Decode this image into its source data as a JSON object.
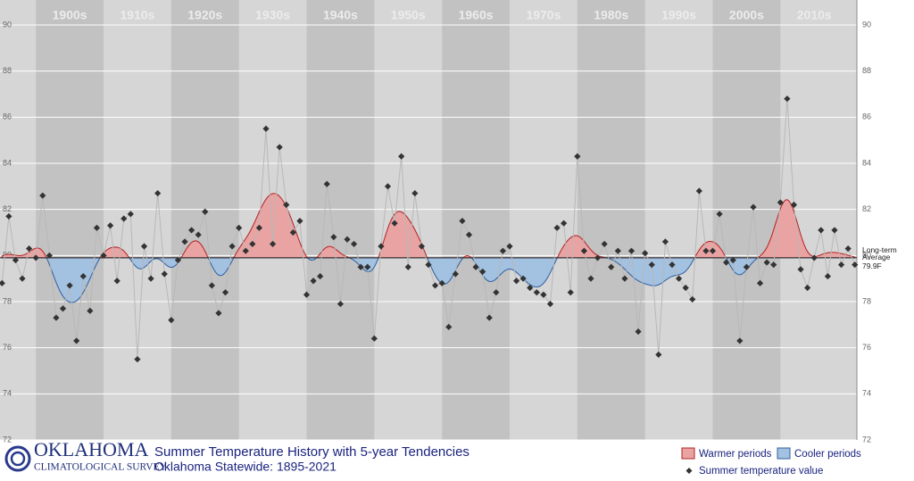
{
  "chart_data": {
    "type": "scatter",
    "title": "Summer Temperature History with 5-year Tendencies",
    "subtitle": "Oklahoma Statewide: 1895-2021",
    "logo": {
      "name": "OKLAHOMA",
      "subname": "CLIMATOLOGICAL SURVEY"
    },
    "decades": [
      "1900s",
      "1910s",
      "1920s",
      "1930s",
      "1940s",
      "1950s",
      "1960s",
      "1970s",
      "1980s",
      "1990s",
      "2000s",
      "2010s"
    ],
    "average": 79.9,
    "average_label_lines": [
      "Long-term",
      "Average"
    ],
    "average_value_label": "79.9F",
    "legend": {
      "warm": "Warmer periods",
      "cool": "Cooler periods",
      "points": "Summer temperature value"
    },
    "colors": {
      "warm_fill": "#e9a3a3",
      "warm_line": "#b22222",
      "cool_fill": "#a3c1e0",
      "cool_line": "#2f5f9e",
      "point": "#333333",
      "connector": "#b8b8b8"
    },
    "x": [
      1895,
      1896,
      1897,
      1898,
      1899,
      1900,
      1901,
      1902,
      1903,
      1904,
      1905,
      1906,
      1907,
      1908,
      1909,
      1910,
      1911,
      1912,
      1913,
      1914,
      1915,
      1916,
      1917,
      1918,
      1919,
      1920,
      1921,
      1922,
      1923,
      1924,
      1925,
      1926,
      1927,
      1928,
      1929,
      1930,
      1931,
      1932,
      1933,
      1934,
      1935,
      1936,
      1937,
      1938,
      1939,
      1940,
      1941,
      1942,
      1943,
      1944,
      1945,
      1946,
      1947,
      1948,
      1949,
      1950,
      1951,
      1952,
      1953,
      1954,
      1955,
      1956,
      1957,
      1958,
      1959,
      1960,
      1961,
      1962,
      1963,
      1964,
      1965,
      1966,
      1967,
      1968,
      1969,
      1970,
      1971,
      1972,
      1973,
      1974,
      1975,
      1976,
      1977,
      1978,
      1979,
      1980,
      1981,
      1982,
      1983,
      1984,
      1985,
      1986,
      1987,
      1988,
      1989,
      1990,
      1991,
      1992,
      1993,
      1994,
      1995,
      1996,
      1997,
      1998,
      1999,
      2000,
      2001,
      2002,
      2003,
      2004,
      2005,
      2006,
      2007,
      2008,
      2009,
      2010,
      2011,
      2012,
      2013,
      2014,
      2015,
      2016,
      2017,
      2018,
      2019,
      2020,
      2021
    ],
    "values": [
      78.8,
      81.7,
      79.8,
      79.0,
      80.3,
      79.9,
      82.6,
      80.0,
      77.3,
      77.7,
      78.7,
      76.3,
      79.1,
      77.6,
      81.2,
      80.0,
      81.3,
      78.9,
      81.6,
      81.8,
      75.5,
      80.4,
      79.0,
      82.7,
      79.2,
      77.2,
      79.8,
      80.6,
      81.1,
      80.9,
      81.9,
      78.7,
      77.5,
      78.4,
      80.4,
      81.2,
      80.2,
      80.5,
      81.2,
      85.5,
      80.5,
      84.7,
      82.2,
      81.0,
      81.5,
      78.3,
      78.9,
      79.1,
      83.1,
      80.8,
      77.9,
      80.7,
      80.5,
      79.5,
      79.5,
      76.4,
      80.4,
      83.0,
      81.4,
      84.3,
      79.5,
      82.7,
      80.4,
      79.6,
      78.7,
      78.8,
      76.9,
      79.2,
      81.5,
      80.9,
      79.5,
      79.3,
      77.3,
      78.4,
      80.2,
      80.4,
      78.9,
      79.0,
      78.6,
      78.4,
      78.3,
      77.9,
      81.2,
      81.4,
      78.4,
      84.3,
      80.2,
      79.0,
      79.9,
      80.5,
      79.5,
      80.2,
      79.0,
      80.2,
      76.7,
      80.1,
      79.6,
      75.7,
      80.6,
      79.6,
      79.0,
      78.6,
      78.1,
      82.8,
      80.2,
      80.2,
      81.8,
      79.7,
      79.8,
      76.3,
      79.5,
      82.1,
      78.8,
      79.7,
      79.6,
      82.3,
      86.8,
      82.2,
      79.4,
      78.6,
      79.9,
      81.1,
      79.1,
      81.1,
      79.6,
      80.3,
      79.6
    ],
    "xlim": [
      1894.7,
      2021.3
    ],
    "ylim": [
      72,
      90
    ],
    "yticks": [
      72,
      74,
      76,
      78,
      80,
      82,
      84,
      86,
      88,
      90
    ],
    "grid": true
  }
}
